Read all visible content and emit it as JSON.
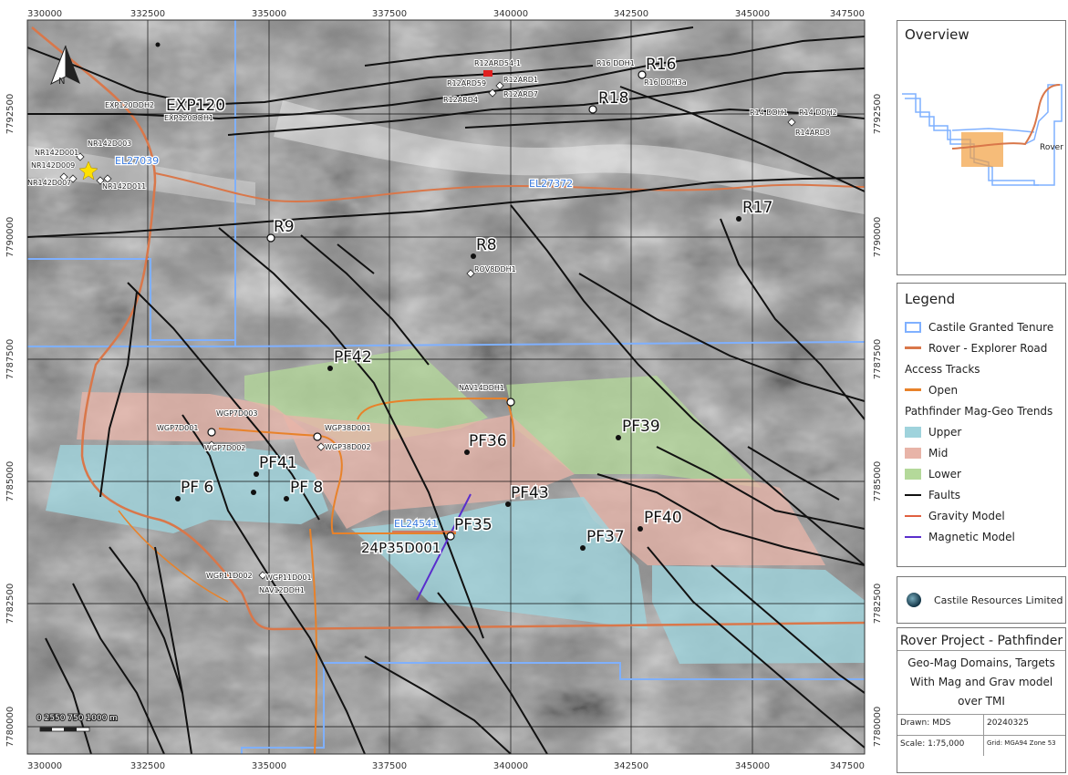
{
  "map": {
    "x_ticks": [
      "330000",
      "332500",
      "335000",
      "337500",
      "340000",
      "342500",
      "345000",
      "347500"
    ],
    "y_ticks": [
      "7792500",
      "7790000",
      "7787500",
      "7785000",
      "7782500",
      "7780000"
    ],
    "north_label": "N",
    "scale_bar_label": "0 2550 750 1000 m",
    "labels": {
      "EXP120": "EXP120",
      "R16": "R16",
      "R18": "R18",
      "R17": "R17",
      "R9": "R9",
      "R8": "R8",
      "PF42": "PF42",
      "PF39": "PF39",
      "PF36": "PF36",
      "PF41": "PF41",
      "PF6": "PF 6",
      "PF8": "PF 8",
      "PF43": "PF43",
      "PF35": "PF35",
      "PF37": "PF37",
      "PF40": "PF40",
      "drill_24P35D001": "24P35D001"
    },
    "tenements": {
      "EL27039": "EL27039",
      "EL27372": "EL27372",
      "EL24541": "EL24541"
    },
    "small_labels": {
      "EXP120DDH2": "EXP120DDH2",
      "EXP120DDH1": "EXP120DDH1",
      "NR142D001": "NR142D001",
      "NR142D003": "NR142D003",
      "NR142D009": "NR142D009",
      "NR142D007": "NR142D007",
      "NR142D011": "NR142D011",
      "R12ARD54_1": "R12ARD54-1",
      "R12ARD1": "R12ARD1",
      "R12ARD59": "R12ARD59",
      "R12ARD7": "R12ARD7",
      "R12ARD4": "R12ARD4",
      "R16DDH1": "R16 DDH1",
      "R16DDH3a": "R16 DDH3a",
      "R14DDH1": "R14 DDH1",
      "R14DDH2": "R14 DDH2",
      "R14ARD8": "R14ARD8",
      "ROV8DDH1": "ROV8DDH1",
      "NAV14DDH1": "NAV14DDH1",
      "WGP7D001": "WGP7D001",
      "WGP7D003": "WGP7D003",
      "WGP7D002": "WGP7D002",
      "WGP38D001": "WGP38D001",
      "WGP38D002": "WGP38D002",
      "WGP11D002": "WGP11D002",
      "WGP11D001": "WGP11D001",
      "NAV12DDH1": "NAV12DDH1"
    }
  },
  "overview": {
    "title": "Overview",
    "label": "Rover 1"
  },
  "legend": {
    "title": "Legend",
    "tenure": "Castile Granted Tenure",
    "road": "Rover -  Explorer Road",
    "access_heading": "Access Tracks",
    "open": "Open",
    "trends_heading": "Pathfinder Mag-Geo Trends",
    "upper": "Upper",
    "mid": "Mid",
    "lower": "Lower",
    "faults": "Faults",
    "gravity": "Gravity Model",
    "magnetic": "Magnetic Model"
  },
  "company": "Castile Resources Limited",
  "title_block": {
    "title": "Rover Project - Pathfinder",
    "subtitle": "Geo-Mag Domains, Targets With Mag and Grav model over TMI",
    "drawn": "Drawn: MDS",
    "date": "20240325",
    "scale": "Scale: 1:75,000",
    "grid": "Grid: MGA94 Zone 53"
  },
  "colors": {
    "tenure": "#7fb0ff",
    "road": "#d9774a",
    "track": "#e8822a",
    "upper": "#9fd3dc",
    "mid": "#e8b4a8",
    "lower": "#b4d99a",
    "fault": "#111111",
    "gravity": "#e06040",
    "magnetic": "#5a2ecc"
  }
}
